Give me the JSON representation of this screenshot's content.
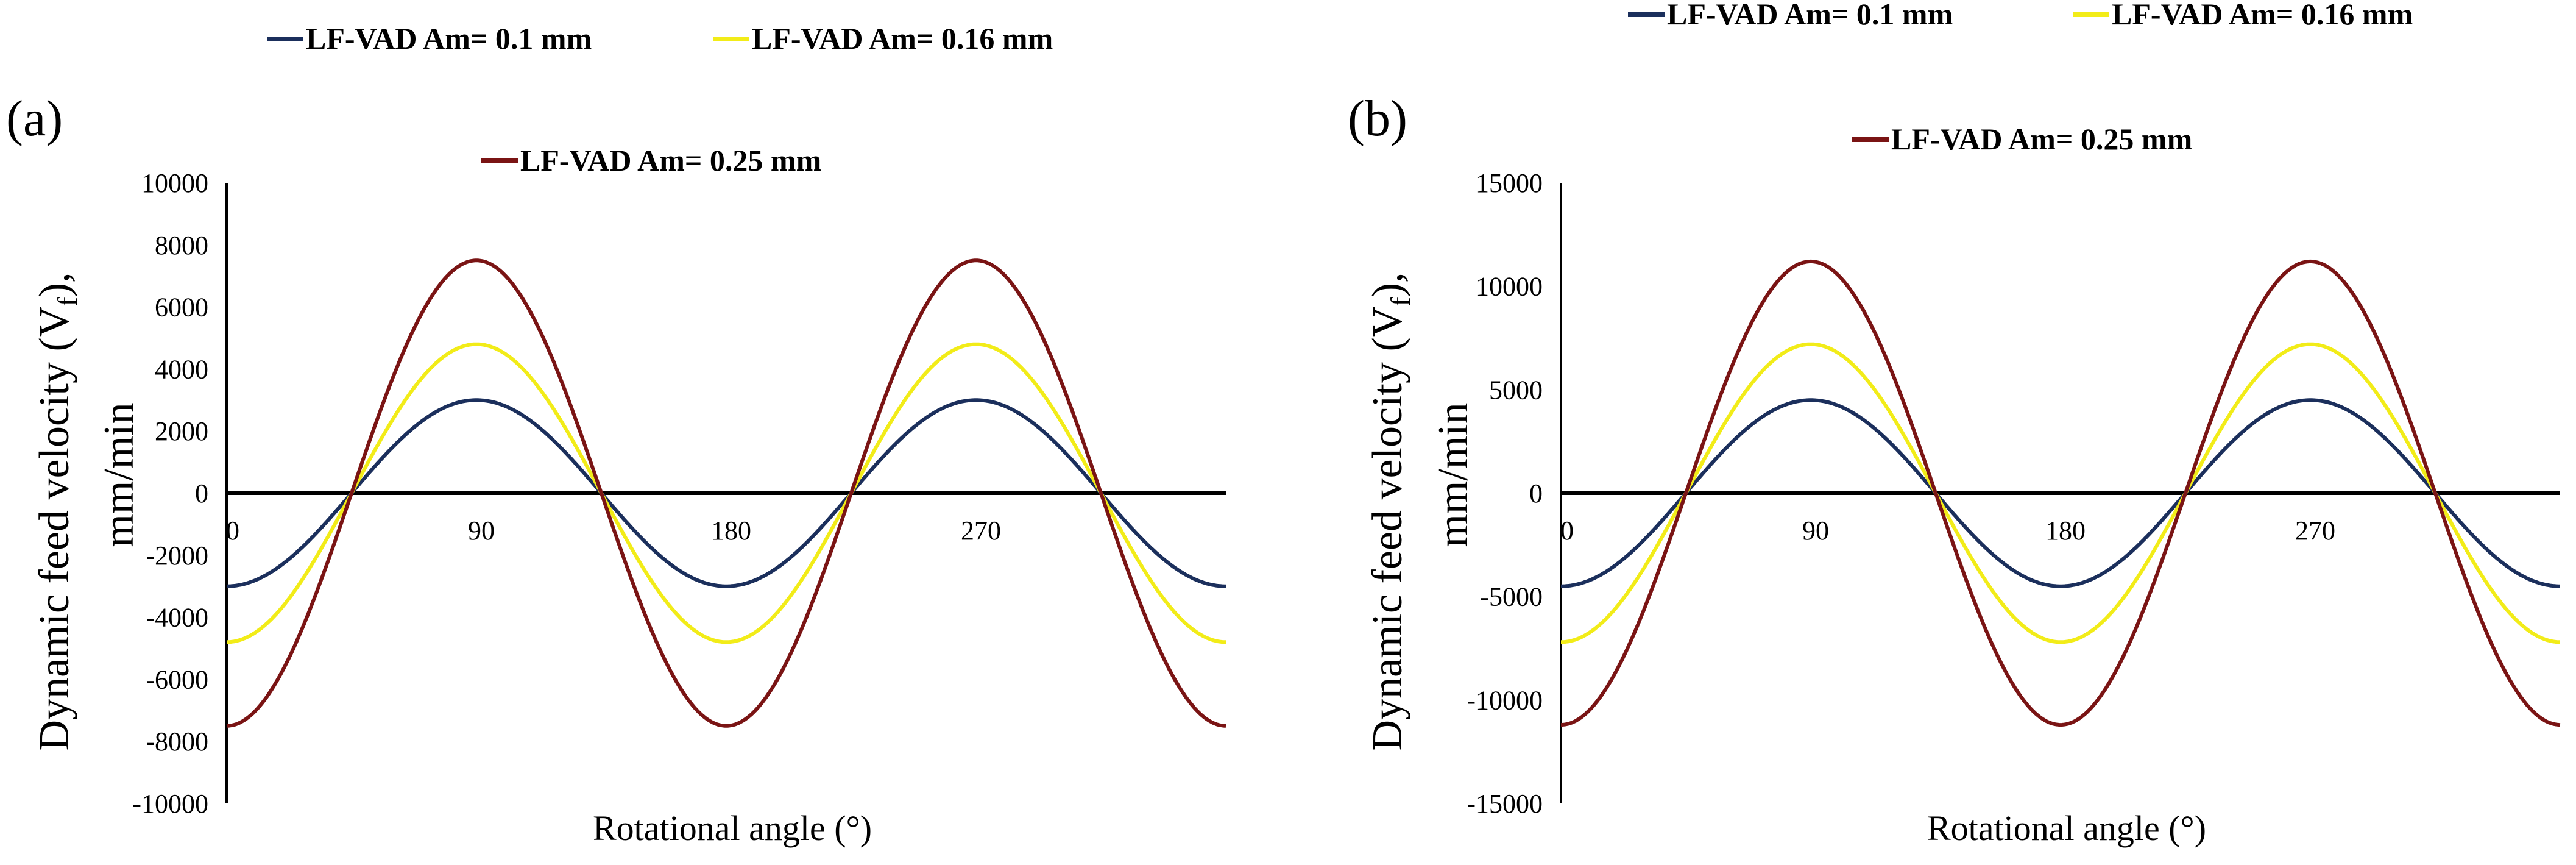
{
  "chart_data": [
    {
      "type": "line",
      "panel_label": "(a)",
      "xlabel": "Rotational angle (°)",
      "ylabel_line1": "Dynamic feed velocity (V",
      "ylabel_sub": "f",
      "ylabel_line1_end": "),",
      "ylabel_line2": "mm/min",
      "xlim": [
        0,
        360
      ],
      "ylim": [
        -10000,
        10000
      ],
      "yticks": [
        10000,
        8000,
        6000,
        4000,
        2000,
        0,
        -2000,
        -4000,
        -6000,
        -8000,
        -10000
      ],
      "ytick_labels": [
        "10000",
        "8000",
        "6000",
        "4000",
        "2000",
        "0",
        "-2000",
        "-4000",
        "-6000",
        "-8000",
        "-10000"
      ],
      "xticks": [
        0,
        90,
        180,
        270
      ],
      "xtick_labels": [
        "0",
        "90",
        "180",
        "270"
      ],
      "legend": [
        "LF-VAD Am= 0.1 mm",
        "LF-VAD Am= 0.16 mm",
        "LF-VAD Am= 0.25 mm"
      ],
      "series": [
        {
          "name": "LF-VAD Am= 0.1 mm",
          "amplitude": 3000,
          "color": "#1b2f5c"
        },
        {
          "name": "LF-VAD Am= 0.16 mm",
          "amplitude": 4800,
          "color": "#f2ec18"
        },
        {
          "name": "LF-VAD Am= 0.25 mm",
          "amplitude": 7500,
          "color": "#7a1414"
        }
      ],
      "period_deg": 180,
      "zero_crossing_deg": 45
    },
    {
      "type": "line",
      "panel_label": "(b)",
      "xlabel": "Rotational angle (°)",
      "ylabel_line1": "Dynamic feed velocity (V",
      "ylabel_sub": "f",
      "ylabel_line1_end": "),",
      "ylabel_line2": "mm/min",
      "xlim": [
        0,
        360
      ],
      "ylim": [
        -15000,
        15000
      ],
      "yticks": [
        15000,
        10000,
        5000,
        0,
        -5000,
        -10000,
        -15000
      ],
      "ytick_labels": [
        "15000",
        "10000",
        "5000",
        "0",
        "-5000",
        "-10000",
        "-15000"
      ],
      "xticks": [
        0,
        90,
        180,
        270
      ],
      "xtick_labels": [
        "0",
        "90",
        "180",
        "270"
      ],
      "legend": [
        "LF-VAD Am= 0.1 mm",
        "LF-VAD Am= 0.16 mm",
        "LF-VAD Am= 0.25 mm"
      ],
      "series": [
        {
          "name": "LF-VAD Am= 0.1 mm",
          "amplitude": 4500,
          "color": "#1b2f5c"
        },
        {
          "name": "LF-VAD Am= 0.16 mm",
          "amplitude": 7200,
          "color": "#f2ec18"
        },
        {
          "name": "LF-VAD Am= 0.25 mm",
          "amplitude": 11200,
          "color": "#7a1414"
        }
      ],
      "period_deg": 180,
      "zero_crossing_deg": 45
    }
  ]
}
